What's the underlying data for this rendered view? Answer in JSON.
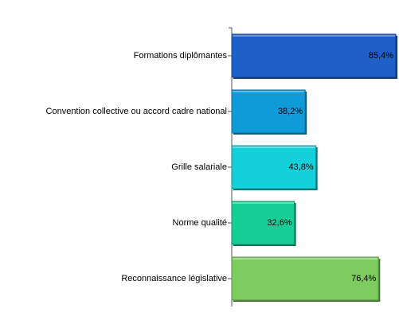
{
  "chart_data": {
    "type": "bar",
    "orientation": "horizontal",
    "categories": [
      "Formations diplômantes",
      "Convention collective ou accord cadre national",
      "Grille salariale",
      "Norme qualité",
      "Reconnaissance législative"
    ],
    "values": [
      85.4,
      38.2,
      43.8,
      32.6,
      76.4
    ],
    "value_labels": [
      "85,4%",
      "38,2%",
      "43,8%",
      "32,6%",
      "76,4%"
    ],
    "colors": [
      "#1f5fc8",
      "#0f9ad8",
      "#14d0da",
      "#16cf96",
      "#7ecb5f"
    ]
  }
}
